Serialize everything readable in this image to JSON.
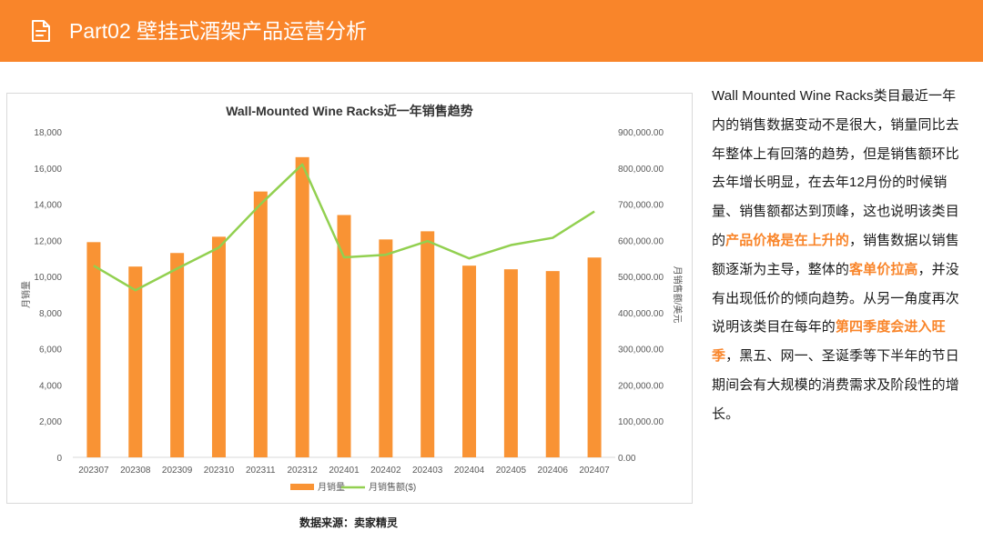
{
  "header": {
    "title": "Part02 壁挂式酒架产品运营分析"
  },
  "colors": {
    "header_bg": "#f9852a",
    "bar": "#f99334",
    "line": "#92d050",
    "highlight": "#f9852a"
  },
  "chart_data": {
    "type": "bar",
    "title": "Wall-Mounted Wine Racks近一年销售趋势",
    "categories": [
      "202307",
      "202308",
      "202309",
      "202310",
      "202311",
      "202312",
      "202401",
      "202402",
      "202403",
      "202404",
      "202405",
      "202406",
      "202407"
    ],
    "series": [
      {
        "name": "月销量",
        "type": "bar",
        "axis": "left",
        "values": [
          11900,
          10550,
          11300,
          12200,
          14700,
          16600,
          13400,
          12050,
          12500,
          10600,
          10400,
          10300,
          11050
        ]
      },
      {
        "name": "月销售额($)",
        "type": "line",
        "axis": "right",
        "values": [
          530000,
          462000,
          522000,
          580000,
          700000,
          810000,
          553000,
          560000,
          598000,
          550000,
          587000,
          607000,
          680000
        ]
      }
    ],
    "ylabel": "月销量",
    "y2label": "月销售额/美元",
    "ylim": [
      0,
      18000
    ],
    "y2lim": [
      0,
      900000
    ],
    "yticks": [
      "0",
      "2,000",
      "4,000",
      "6,000",
      "8,000",
      "10,000",
      "12,000",
      "14,000",
      "16,000",
      "18,000"
    ],
    "y2ticks": [
      "0.00",
      "100,000.00",
      "200,000.00",
      "300,000.00",
      "400,000.00",
      "500,000.00",
      "600,000.00",
      "700,000.00",
      "800,000.00",
      "900,000.00"
    ],
    "legend_position": "bottom",
    "grid": false
  },
  "source": "数据来源：卖家精灵",
  "description": {
    "segments": [
      {
        "text": "Wall Mounted Wine Racks类目最近一年内的销售数据变动不是很大，销量同比去年整体上有回落的趋势，但是销售额环比去年增长明显，在去年12月份的时候销量、销售额都达到顶峰，这也说明该类目的",
        "highlight": false
      },
      {
        "text": "产品价格是在上升的",
        "highlight": true
      },
      {
        "text": "，销售数据以销售额逐渐为主导，整体的",
        "highlight": false
      },
      {
        "text": "客单价拉高",
        "highlight": true
      },
      {
        "text": "，并没有出现低价的倾向趋势。从另一角度再次说明该类目在每年的",
        "highlight": false
      },
      {
        "text": "第四季度会进入旺季",
        "highlight": true
      },
      {
        "text": "，黑五、网一、圣诞季等下半年的节日期间会有大规模的消费需求及阶段性的增长。",
        "highlight": false
      }
    ]
  }
}
